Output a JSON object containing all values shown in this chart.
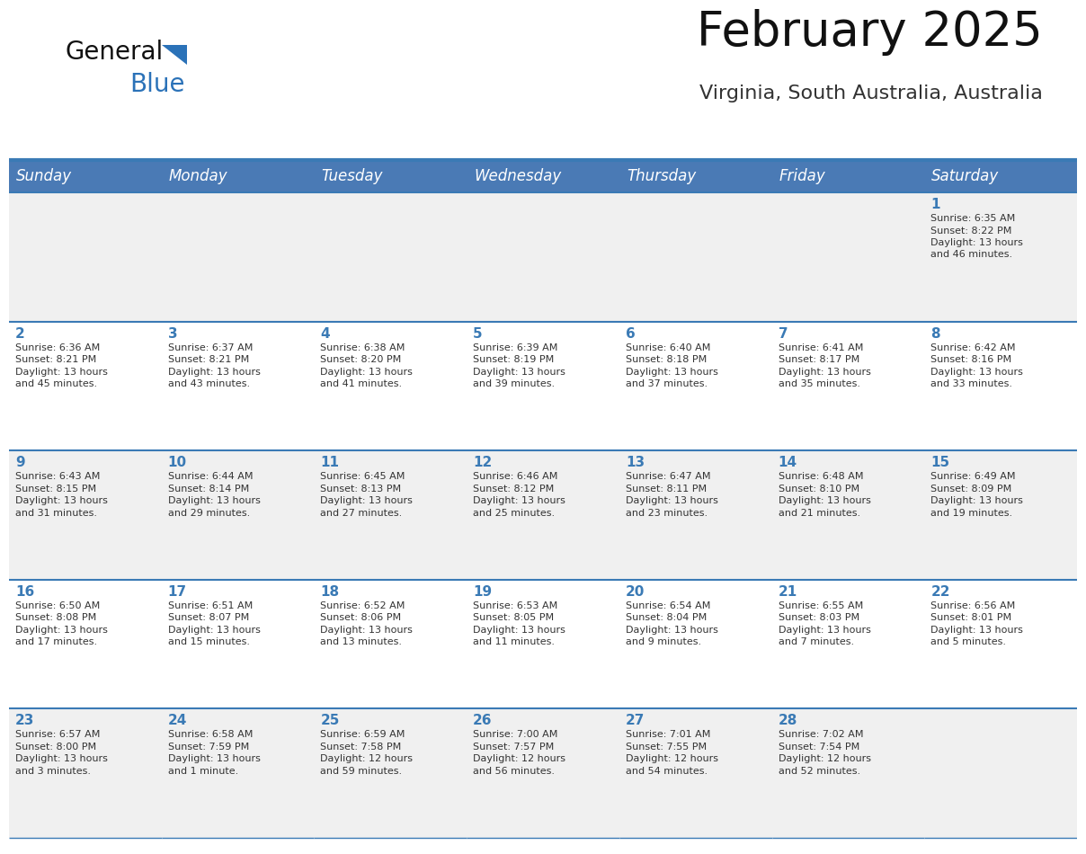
{
  "title": "February 2025",
  "subtitle": "Virginia, South Australia, Australia",
  "days_of_week": [
    "Sunday",
    "Monday",
    "Tuesday",
    "Wednesday",
    "Thursday",
    "Friday",
    "Saturday"
  ],
  "header_bg": "#4a7ab5",
  "header_text_color": "#ffffff",
  "cell_bg_odd": "#f0f0f0",
  "cell_bg_even": "#ffffff",
  "text_color_dark": "#333333",
  "text_color_blue": "#3a7ab5",
  "line_color": "#3a7ab5",
  "logo_color_general": "#111111",
  "logo_color_blue": "#2b72b8",
  "title_fontsize": 38,
  "subtitle_fontsize": 16,
  "header_fontsize": 12,
  "day_num_fontsize": 11,
  "cell_text_fontsize": 8,
  "calendar_data": [
    [
      null,
      null,
      null,
      null,
      null,
      null,
      {
        "day": 1,
        "sunrise": "6:35 AM",
        "sunset": "8:22 PM",
        "daylight1": "13 hours",
        "daylight2": "and 46 minutes."
      }
    ],
    [
      {
        "day": 2,
        "sunrise": "6:36 AM",
        "sunset": "8:21 PM",
        "daylight1": "13 hours",
        "daylight2": "and 45 minutes."
      },
      {
        "day": 3,
        "sunrise": "6:37 AM",
        "sunset": "8:21 PM",
        "daylight1": "13 hours",
        "daylight2": "and 43 minutes."
      },
      {
        "day": 4,
        "sunrise": "6:38 AM",
        "sunset": "8:20 PM",
        "daylight1": "13 hours",
        "daylight2": "and 41 minutes."
      },
      {
        "day": 5,
        "sunrise": "6:39 AM",
        "sunset": "8:19 PM",
        "daylight1": "13 hours",
        "daylight2": "and 39 minutes."
      },
      {
        "day": 6,
        "sunrise": "6:40 AM",
        "sunset": "8:18 PM",
        "daylight1": "13 hours",
        "daylight2": "and 37 minutes."
      },
      {
        "day": 7,
        "sunrise": "6:41 AM",
        "sunset": "8:17 PM",
        "daylight1": "13 hours",
        "daylight2": "and 35 minutes."
      },
      {
        "day": 8,
        "sunrise": "6:42 AM",
        "sunset": "8:16 PM",
        "daylight1": "13 hours",
        "daylight2": "and 33 minutes."
      }
    ],
    [
      {
        "day": 9,
        "sunrise": "6:43 AM",
        "sunset": "8:15 PM",
        "daylight1": "13 hours",
        "daylight2": "and 31 minutes."
      },
      {
        "day": 10,
        "sunrise": "6:44 AM",
        "sunset": "8:14 PM",
        "daylight1": "13 hours",
        "daylight2": "and 29 minutes."
      },
      {
        "day": 11,
        "sunrise": "6:45 AM",
        "sunset": "8:13 PM",
        "daylight1": "13 hours",
        "daylight2": "and 27 minutes."
      },
      {
        "day": 12,
        "sunrise": "6:46 AM",
        "sunset": "8:12 PM",
        "daylight1": "13 hours",
        "daylight2": "and 25 minutes."
      },
      {
        "day": 13,
        "sunrise": "6:47 AM",
        "sunset": "8:11 PM",
        "daylight1": "13 hours",
        "daylight2": "and 23 minutes."
      },
      {
        "day": 14,
        "sunrise": "6:48 AM",
        "sunset": "8:10 PM",
        "daylight1": "13 hours",
        "daylight2": "and 21 minutes."
      },
      {
        "day": 15,
        "sunrise": "6:49 AM",
        "sunset": "8:09 PM",
        "daylight1": "13 hours",
        "daylight2": "and 19 minutes."
      }
    ],
    [
      {
        "day": 16,
        "sunrise": "6:50 AM",
        "sunset": "8:08 PM",
        "daylight1": "13 hours",
        "daylight2": "and 17 minutes."
      },
      {
        "day": 17,
        "sunrise": "6:51 AM",
        "sunset": "8:07 PM",
        "daylight1": "13 hours",
        "daylight2": "and 15 minutes."
      },
      {
        "day": 18,
        "sunrise": "6:52 AM",
        "sunset": "8:06 PM",
        "daylight1": "13 hours",
        "daylight2": "and 13 minutes."
      },
      {
        "day": 19,
        "sunrise": "6:53 AM",
        "sunset": "8:05 PM",
        "daylight1": "13 hours",
        "daylight2": "and 11 minutes."
      },
      {
        "day": 20,
        "sunrise": "6:54 AM",
        "sunset": "8:04 PM",
        "daylight1": "13 hours",
        "daylight2": "and 9 minutes."
      },
      {
        "day": 21,
        "sunrise": "6:55 AM",
        "sunset": "8:03 PM",
        "daylight1": "13 hours",
        "daylight2": "and 7 minutes."
      },
      {
        "day": 22,
        "sunrise": "6:56 AM",
        "sunset": "8:01 PM",
        "daylight1": "13 hours",
        "daylight2": "and 5 minutes."
      }
    ],
    [
      {
        "day": 23,
        "sunrise": "6:57 AM",
        "sunset": "8:00 PM",
        "daylight1": "13 hours",
        "daylight2": "and 3 minutes."
      },
      {
        "day": 24,
        "sunrise": "6:58 AM",
        "sunset": "7:59 PM",
        "daylight1": "13 hours",
        "daylight2": "and 1 minute."
      },
      {
        "day": 25,
        "sunrise": "6:59 AM",
        "sunset": "7:58 PM",
        "daylight1": "12 hours",
        "daylight2": "and 59 minutes."
      },
      {
        "day": 26,
        "sunrise": "7:00 AM",
        "sunset": "7:57 PM",
        "daylight1": "12 hours",
        "daylight2": "and 56 minutes."
      },
      {
        "day": 27,
        "sunrise": "7:01 AM",
        "sunset": "7:55 PM",
        "daylight1": "12 hours",
        "daylight2": "and 54 minutes."
      },
      {
        "day": 28,
        "sunrise": "7:02 AM",
        "sunset": "7:54 PM",
        "daylight1": "12 hours",
        "daylight2": "and 52 minutes."
      },
      null
    ]
  ]
}
